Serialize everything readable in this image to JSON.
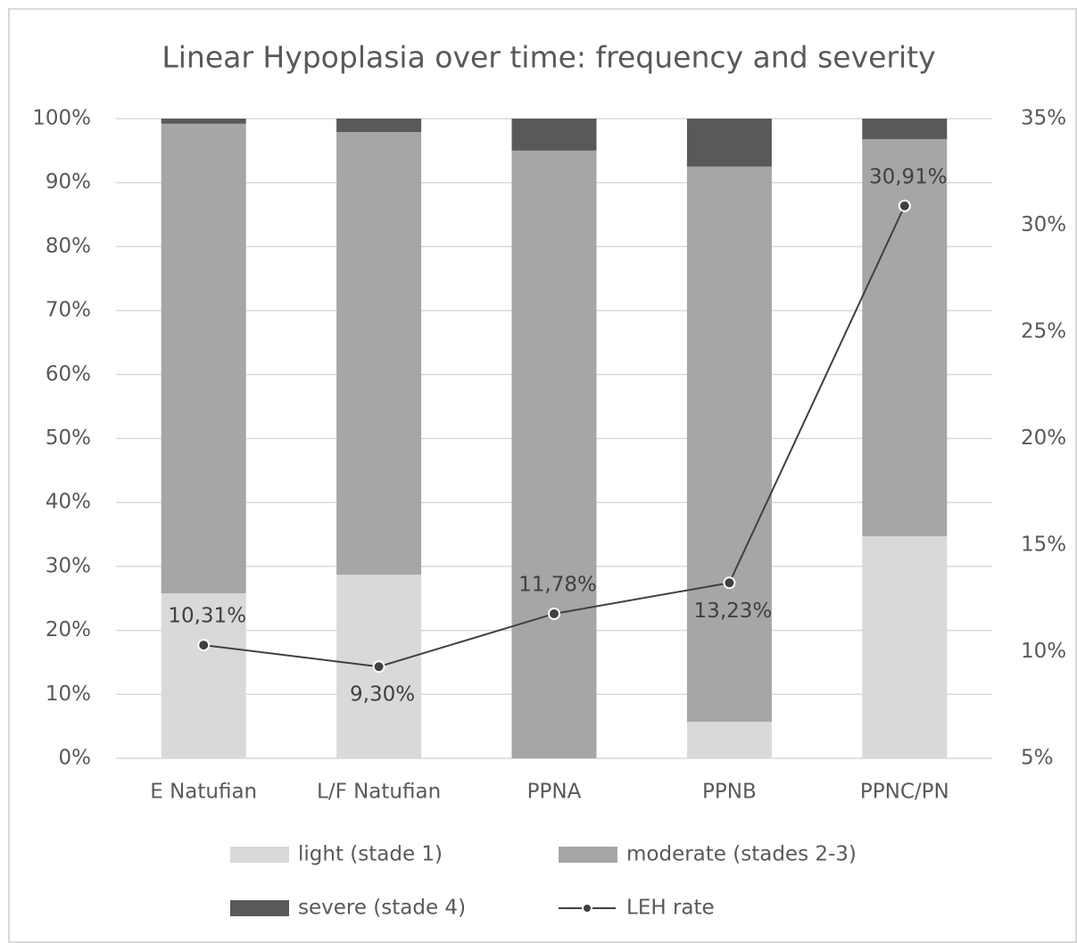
{
  "chart_data": {
    "type": "bar",
    "stacked": true,
    "title": "Linear Hypoplasia over time: frequency and severity",
    "categories": [
      "E Natufian",
      "L/F Natufian",
      "PPNA",
      "PPNB",
      "PPNC/PN"
    ],
    "series": [
      {
        "name": "light (stade 1)",
        "color": "#d9d9d9",
        "values": [
          25.8,
          28.7,
          0,
          5.7,
          34.7
        ]
      },
      {
        "name": "moderate (stades 2-3)",
        "color": "#a6a6a6",
        "values": [
          73.4,
          69.2,
          95.0,
          86.8,
          62.1
        ]
      },
      {
        "name": "severe (stade 4)",
        "color": "#595959",
        "values": [
          0.8,
          2.1,
          5.0,
          7.5,
          3.2
        ]
      },
      {
        "name": "LEH rate",
        "color": "#404040",
        "type": "line",
        "axis": "y2",
        "values": [
          10.31,
          9.3,
          11.78,
          13.23,
          30.91
        ],
        "value_labels": [
          "10,31%",
          "9,30%",
          "11,78%",
          "13,23%",
          "30,91%"
        ]
      }
    ],
    "ylim": [
      0,
      100
    ],
    "yticks": [
      {
        "value": 0,
        "label": "0%"
      },
      {
        "value": 10,
        "label": "10%"
      },
      {
        "value": 20,
        "label": "20%"
      },
      {
        "value": 30,
        "label": "30%"
      },
      {
        "value": 40,
        "label": "40%"
      },
      {
        "value": 50,
        "label": "50%"
      },
      {
        "value": 60,
        "label": "60%"
      },
      {
        "value": 70,
        "label": "70%"
      },
      {
        "value": 80,
        "label": "80%"
      },
      {
        "value": 90,
        "label": "90%"
      },
      {
        "value": 100,
        "label": "100%"
      }
    ],
    "y2lim": [
      5,
      35
    ],
    "y2ticks": [
      {
        "value": 5,
        "label": "5%"
      },
      {
        "value": 10,
        "label": "10%"
      },
      {
        "value": 15,
        "label": "15%"
      },
      {
        "value": 20,
        "label": "20%"
      },
      {
        "value": 25,
        "label": "25%"
      },
      {
        "value": 30,
        "label": "30%"
      },
      {
        "value": 35,
        "label": "35%"
      }
    ],
    "grid": true,
    "legend": "bottom"
  }
}
